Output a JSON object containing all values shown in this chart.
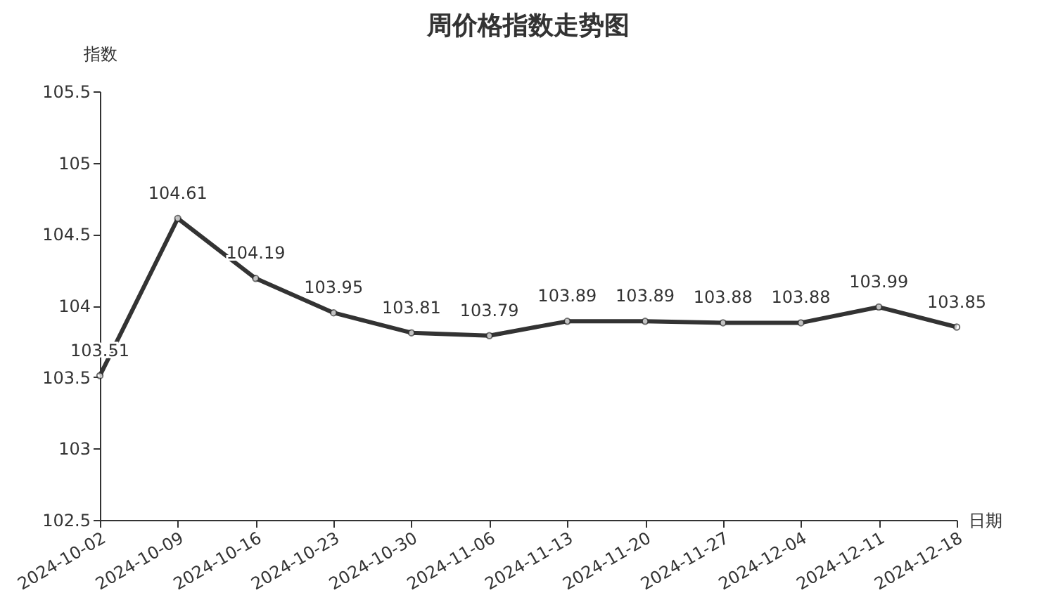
{
  "chart_data": {
    "type": "line",
    "title": "周价格指数走势图",
    "xlabel": "日期",
    "ylabel": "指数",
    "categories": [
      "2024-10-02",
      "2024-10-09",
      "2024-10-16",
      "2024-10-23",
      "2024-10-30",
      "2024-11-06",
      "2024-11-13",
      "2024-11-20",
      "2024-11-27",
      "2024-12-04",
      "2024-12-11",
      "2024-12-18"
    ],
    "series": [
      {
        "color": "#333333",
        "values": [
          103.51,
          104.61,
          104.19,
          103.95,
          103.81,
          103.79,
          103.89,
          103.89,
          103.88,
          103.88,
          103.99,
          103.85
        ]
      }
    ],
    "ylim": [
      102.5,
      105.5
    ],
    "yticks": [
      102.5,
      {
        "value": 103,
        "label": "103"
      },
      103.5,
      {
        "value": 104,
        "label": "104"
      },
      104.5,
      {
        "value": 105,
        "label": "105"
      },
      105.5
    ],
    "grid": false,
    "legend": false,
    "marker": "circle",
    "line_style": "solid",
    "data_labels": true
  }
}
